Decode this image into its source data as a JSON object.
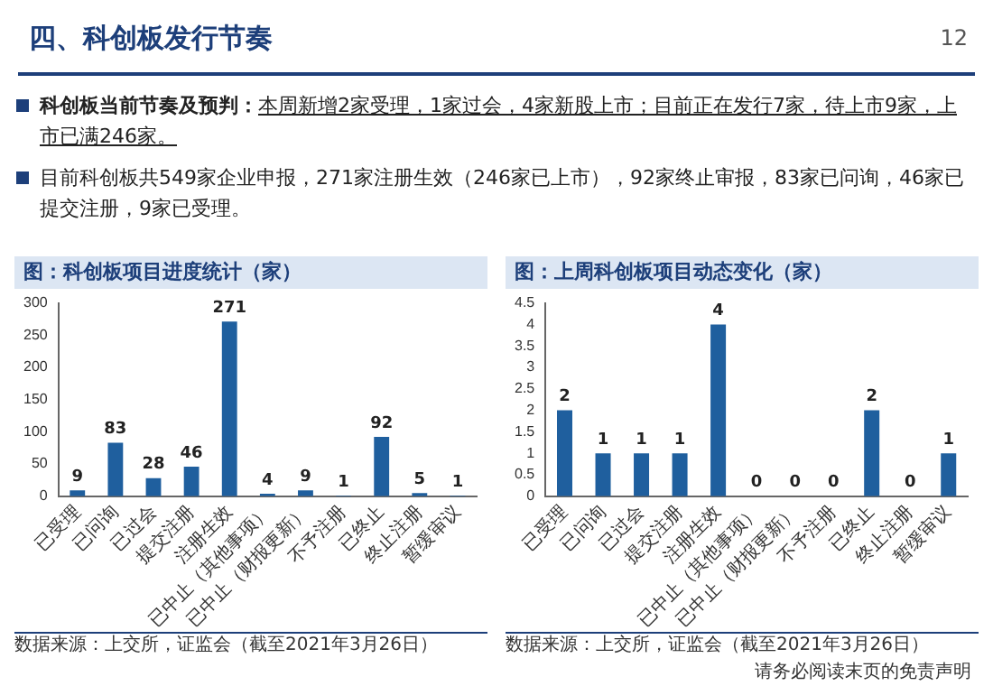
{
  "chart_data": [
    {
      "type": "other",
      "title": "四、科创板发行节奏",
      "annotations": [
        "科创板当前节奏及预判：",
        "本周新增2家受理，1家过会，4家新股上市；目前正在发行7家，待上市9家，上市已满246家。",
        "目前科创板共549家企业申报，271家注册生效（246家已上市），92家终止审报，83家已问询，46家已提交注册，9家已受理。",
        "12",
        "请务必阅读末页的免责声明"
      ]
    },
    {
      "type": "bar",
      "title": "图：科创板项目进度统计（家）",
      "categories": [
        "已受理",
        "已问询",
        "已过会",
        "提交注册",
        "注册生效",
        "已中止（其他事项）",
        "已中止（财报更新）",
        "不予注册",
        "已终止",
        "终止注册",
        "暂缓审议"
      ],
      "values": [
        9,
        83,
        28,
        46,
        271,
        4,
        9,
        1,
        92,
        5,
        1
      ],
      "color": "#1f5f9e",
      "ylim": [
        0,
        300
      ],
      "yticks": [
        0,
        50,
        100,
        150,
        200,
        250,
        300
      ],
      "grid": false,
      "data_labels": true,
      "annotations": [
        "数据来源：上交所，证监会（截至2021年3月26日）"
      ]
    },
    {
      "type": "bar",
      "title": "图：上周科创板项目动态变化（家）",
      "categories": [
        "已受理",
        "已问询",
        "已过会",
        "提交注册",
        "注册生效",
        "已中止（其他事项）",
        "已中止（财报更新）",
        "不予注册",
        "已终止",
        "终止注册",
        "暂缓审议"
      ],
      "values": [
        2,
        1,
        1,
        1,
        4,
        0,
        0,
        0,
        2,
        0,
        1
      ],
      "color": "#1f5f9e",
      "ylim": [
        0,
        4.5
      ],
      "yticks": [
        0,
        0.5,
        1,
        1.5,
        2,
        2.5,
        3,
        3.5,
        4,
        4.5
      ],
      "grid": false,
      "data_labels": true,
      "annotations": [
        "数据来源：上交所，证监会（截至2021年3月26日）"
      ]
    }
  ]
}
